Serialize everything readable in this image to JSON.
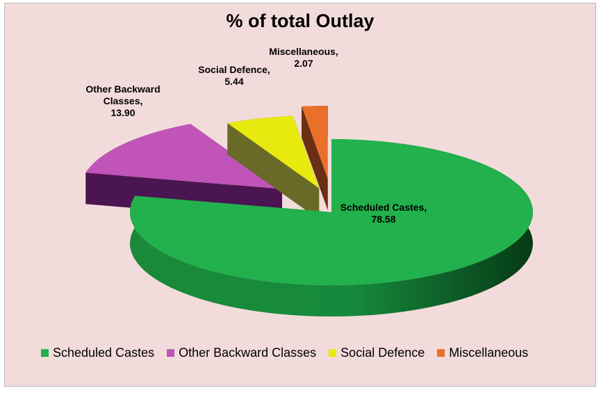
{
  "chart_data": {
    "type": "pie",
    "title": "% of total Outlay",
    "categories": [
      "Scheduled Castes",
      "Other Backward Classes",
      "Social Defence",
      "Miscellaneous"
    ],
    "values": [
      78.58,
      13.9,
      5.44,
      2.07
    ],
    "value_labels": [
      "78.58",
      "13.90",
      "5.44",
      "2.07"
    ],
    "slice_labels": [
      [
        "Scheduled Castes,",
        "78.58"
      ],
      [
        "Other Backward",
        "Classes,",
        "13.90"
      ],
      [
        "Social Defence,",
        "5.44"
      ],
      [
        "Miscellaneous,",
        "2.07"
      ]
    ],
    "colors": [
      "#22b14c",
      "#c154b8",
      "#e8ea0f",
      "#e8702a"
    ],
    "side_colors": [
      "#0a6a28",
      "#4a1550",
      "#6a6a28",
      "#6a2e12"
    ],
    "style": "3d-exploded-pie",
    "legend_position": "bottom",
    "grid": false
  }
}
